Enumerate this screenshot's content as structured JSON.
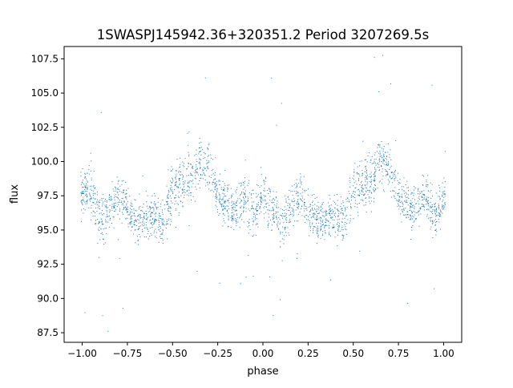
{
  "chart_data": {
    "type": "scatter",
    "title": "1SWASPJ145942.36+320351.2 Period 3207269.5s",
    "xlabel": "phase",
    "ylabel": "flux",
    "xlim": [
      -1.1,
      1.1
    ],
    "ylim": [
      86.8,
      108.4
    ],
    "xticks": [
      -1.0,
      -0.75,
      -0.5,
      -0.25,
      0.0,
      0.25,
      0.5,
      0.75,
      1.0
    ],
    "xtick_labels": [
      "−1.00",
      "−0.75",
      "−0.50",
      "−0.25",
      "0.00",
      "0.25",
      "0.50",
      "0.75",
      "1.00"
    ],
    "yticks": [
      87.5,
      90.0,
      92.5,
      95.0,
      97.5,
      100.0,
      102.5,
      105.0,
      107.5
    ],
    "ytick_labels": [
      "87.5",
      "90.0",
      "92.5",
      "95.0",
      "97.5",
      "100.0",
      "102.5",
      "105.0",
      "107.5"
    ],
    "grid": false,
    "marker_color": "#1f77b4",
    "series": [
      {
        "x": [
          -1.0,
          -0.95,
          -0.9,
          -0.85,
          -0.8,
          -0.75,
          -0.7,
          -0.65,
          -0.6,
          -0.55,
          -0.5,
          -0.45,
          -0.4,
          -0.35,
          -0.3,
          -0.25,
          -0.2,
          -0.15,
          -0.1,
          -0.05,
          0.0,
          0.05,
          0.1,
          0.15,
          0.2,
          0.25,
          0.3,
          0.35,
          0.4,
          0.45,
          0.5,
          0.55,
          0.6,
          0.65,
          0.7,
          0.75,
          0.8,
          0.85,
          0.9,
          0.95,
          1.0
        ],
        "y": [
          97.5,
          98.0,
          95.5,
          96.5,
          97.5,
          96.8,
          95.5,
          95.8,
          96.0,
          95.5,
          98.0,
          98.5,
          98.5,
          100.0,
          99.5,
          97.5,
          97.0,
          96.5,
          97.5,
          96.0,
          97.5,
          96.5,
          95.5,
          96.5,
          97.5,
          96.5,
          95.5,
          95.8,
          96.0,
          95.5,
          98.0,
          98.5,
          98.5,
          100.0,
          99.5,
          97.5,
          97.0,
          96.5,
          97.5,
          96.0,
          97.5
        ],
        "spread": [
          1.5,
          2.0,
          1.8,
          1.8,
          1.6,
          1.6,
          1.5,
          1.5,
          1.6,
          1.8,
          2.0,
          2.0,
          1.8,
          1.8,
          1.6,
          1.6,
          1.6,
          1.6,
          1.8,
          1.8,
          1.8,
          2.0,
          1.8,
          1.8,
          1.6,
          1.6,
          1.5,
          1.5,
          1.6,
          1.8,
          2.0,
          2.0,
          1.8,
          1.8,
          1.6,
          1.6,
          1.6,
          1.6,
          1.8,
          1.8,
          1.5
        ]
      }
    ]
  }
}
